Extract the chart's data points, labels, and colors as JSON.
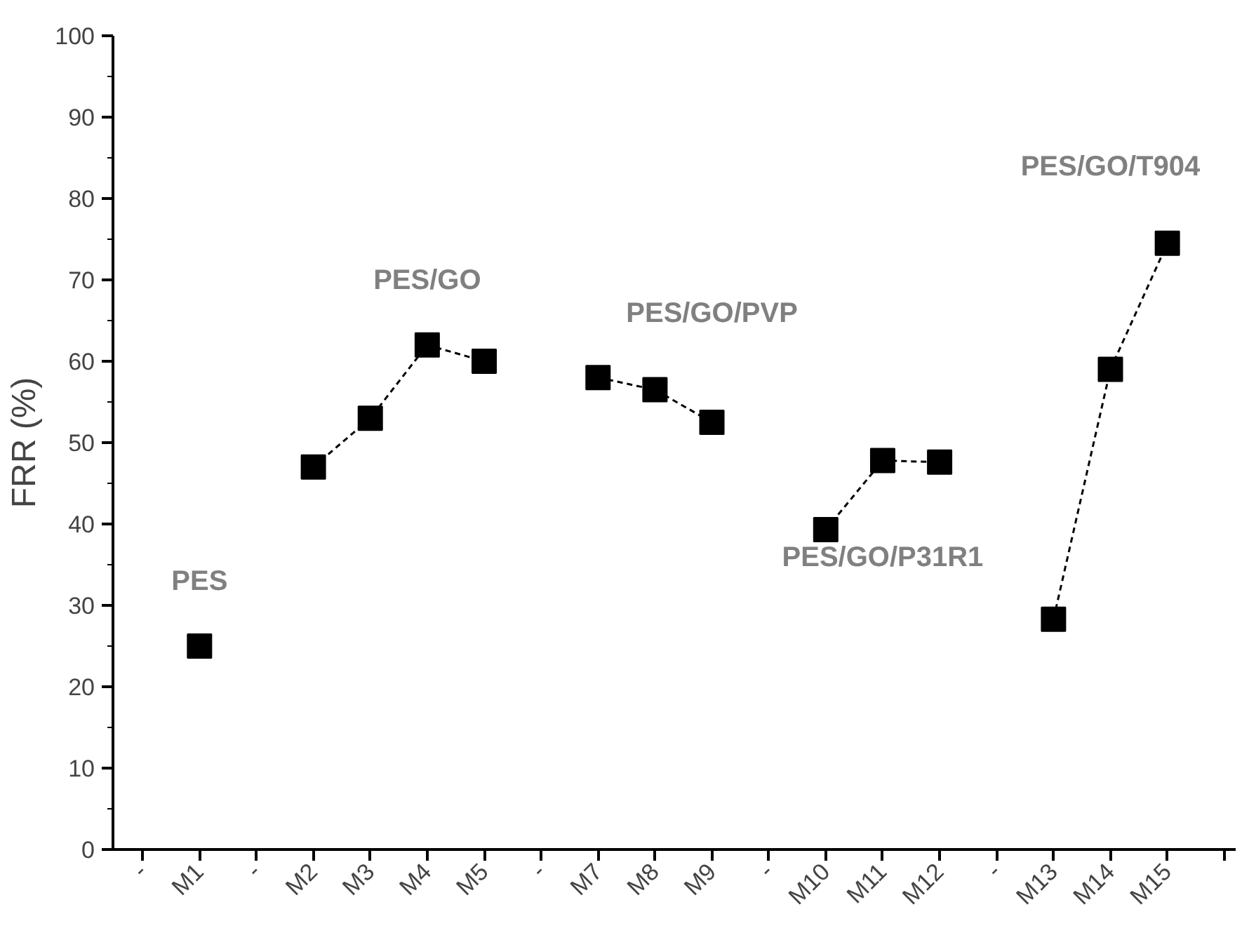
{
  "chart_data": {
    "type": "line",
    "ylabel": "FRR (%)",
    "categories": [
      "-",
      "M1",
      "-",
      "M2",
      "M3",
      "M4",
      "M5",
      "-",
      "M7",
      "M8",
      "M9",
      "-",
      "M10",
      "M11",
      "M12",
      "-",
      "M13",
      "M14",
      "M15",
      null
    ],
    "series": [
      {
        "name": "PES",
        "color": "#000000",
        "values": [
          null,
          25,
          null,
          null,
          null,
          null,
          null,
          null,
          null,
          null,
          null,
          null,
          null,
          null,
          null,
          null,
          null,
          null,
          null,
          null
        ]
      },
      {
        "name": "PES/GO",
        "color": "#000000",
        "values": [
          null,
          null,
          null,
          47,
          53,
          62,
          60,
          null,
          null,
          null,
          null,
          null,
          null,
          null,
          null,
          null,
          null,
          null,
          null,
          null
        ]
      },
      {
        "name": "PES/GO/PVP",
        "color": "#000000",
        "values": [
          null,
          null,
          null,
          null,
          null,
          null,
          null,
          null,
          58,
          56.5,
          52.5,
          null,
          null,
          null,
          null,
          null,
          null,
          null,
          null,
          null
        ]
      },
      {
        "name": "PES/GO/P31R1",
        "color": "#000000",
        "values": [
          null,
          null,
          null,
          null,
          null,
          null,
          null,
          null,
          null,
          null,
          null,
          null,
          39.3,
          47.8,
          47.6,
          null,
          null,
          null,
          null,
          null
        ]
      },
      {
        "name": "PES/GO/T904",
        "color": "#000000",
        "values": [
          null,
          null,
          null,
          null,
          null,
          null,
          null,
          null,
          null,
          null,
          null,
          null,
          null,
          null,
          null,
          null,
          28.3,
          59,
          74.5,
          null
        ]
      }
    ],
    "ylim": [
      0,
      100
    ],
    "yticks": [
      0,
      10,
      20,
      30,
      40,
      50,
      60,
      70,
      80,
      90,
      100
    ],
    "marker": "square",
    "line_style": "dashed"
  }
}
